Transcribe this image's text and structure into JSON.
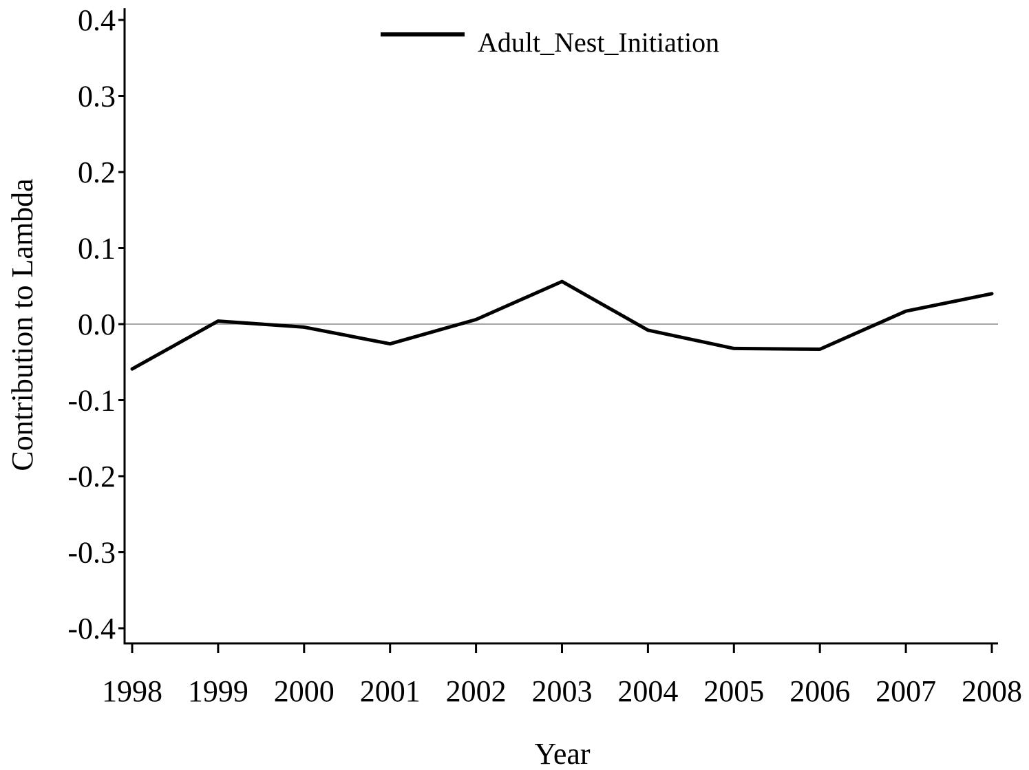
{
  "chart_data": {
    "type": "line",
    "title": "",
    "xlabel": "Year",
    "ylabel": "Contribution to Lambda",
    "x": [
      "1998",
      "1999",
      "2000",
      "2001",
      "2002",
      "2003",
      "2004",
      "2005",
      "2006",
      "2007",
      "2008"
    ],
    "series": [
      {
        "name": "Adult_Nest_Initiation",
        "values": [
          -0.059,
          0.004,
          -0.004,
          -0.026,
          0.006,
          0.056,
          -0.008,
          -0.032,
          -0.033,
          0.017,
          0.04
        ],
        "color": "#000000"
      }
    ],
    "ylim": [
      -0.4,
      0.4
    ],
    "yticks": [
      "-0.4",
      "-0.3",
      "-0.2",
      "-0.1",
      "0.0",
      "0.1",
      "0.2",
      "0.3",
      "0.4"
    ],
    "reference_line": 0.0,
    "reference_line_color": "#888888",
    "grid": false,
    "legend_position": "top-center"
  }
}
